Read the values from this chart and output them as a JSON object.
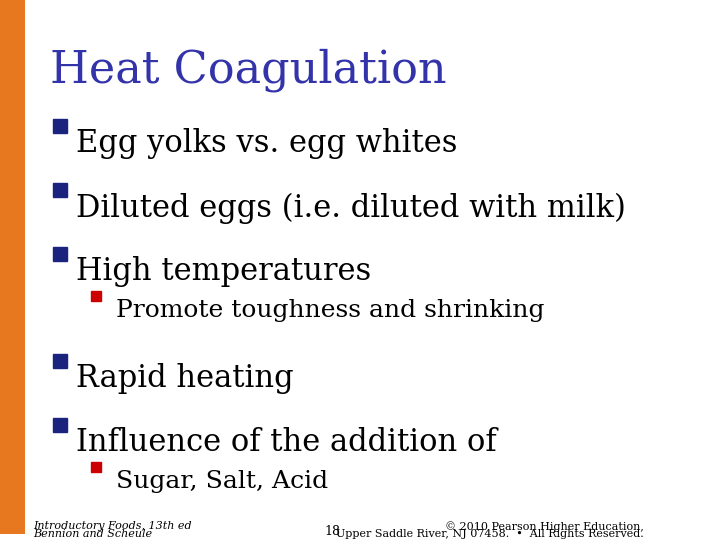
{
  "title": "Heat Coagulation",
  "title_color": "#3333AA",
  "title_fontsize": 32,
  "background_color": "#FFFFFF",
  "left_bar_color": "#E87820",
  "bullet_color_primary": "#1A237E",
  "bullet_color_secondary": "#CC0000",
  "bullet_items": [
    {
      "level": 1,
      "text": "Egg yolks vs. egg whites"
    },
    {
      "level": 1,
      "text": "Diluted eggs (i.e. diluted with milk)"
    },
    {
      "level": 1,
      "text": "High temperatures"
    },
    {
      "level": 2,
      "text": "Promote toughness and shrinking"
    },
    {
      "level": 1,
      "text": "Rapid heating"
    },
    {
      "level": 1,
      "text": "Influence of the addition of"
    },
    {
      "level": 2,
      "text": "Sugar, Salt, Acid"
    }
  ],
  "bullet1_fontsize": 22,
  "bullet2_fontsize": 18,
  "footer_left_line1": "Introductory Foods, 13th ed",
  "footer_left_line2": "Bennion and Scheule",
  "footer_center": "18",
  "footer_right_line1": "© 2010 Pearson Higher Education,",
  "footer_right_line2": "Upper Saddle River, NJ 07458.  •  All Rights Reserved.",
  "footer_fontsize": 8,
  "text_color": "#000000"
}
